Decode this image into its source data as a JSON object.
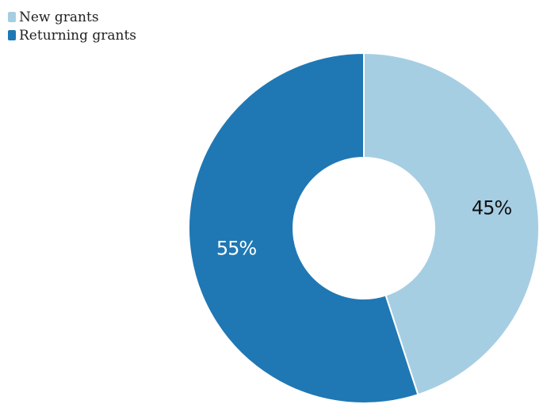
{
  "chart_data": {
    "type": "pie",
    "variant": "donut",
    "categories": [
      "New grants",
      "Returning grants"
    ],
    "values": [
      45,
      55
    ],
    "unit": "%",
    "data_labels": [
      "45%",
      "55%"
    ],
    "colors": [
      "#a6cee3",
      "#1f78b4"
    ],
    "label_colors": [
      "#111111",
      "#ffffff"
    ],
    "legend": {
      "placement": "top-left",
      "entries": [
        "New grants",
        "Returning grants"
      ]
    }
  }
}
